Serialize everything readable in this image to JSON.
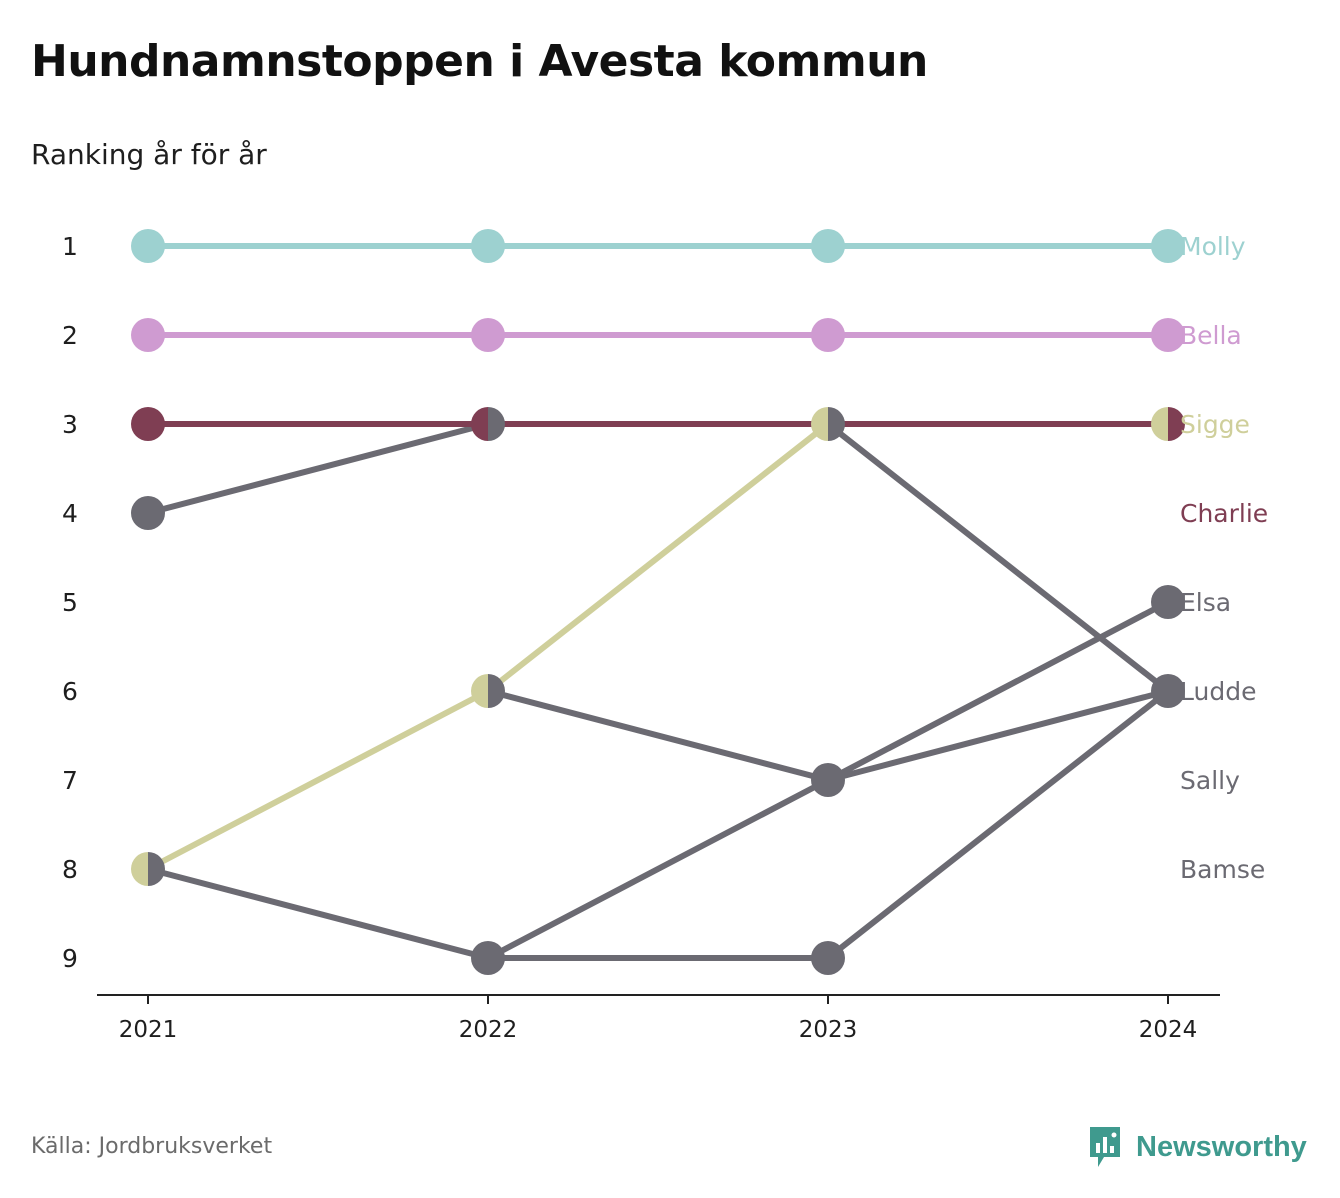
{
  "header": {
    "title": "Hundnamnstoppen i Avesta kommun",
    "subtitle": "Ranking år för år"
  },
  "footer": {
    "source": "Källa: Jordbruksverket",
    "brand": "Newsworthy",
    "brand_icon": "chart-bubble-icon",
    "brand_color": "#3f9a8e"
  },
  "chart_data": {
    "type": "line",
    "title": "Hundnamnstoppen i Avesta kommun",
    "subtitle": "Ranking år för år",
    "x": [
      "2021",
      "2022",
      "2023",
      "2024"
    ],
    "y_ticks": [
      1,
      2,
      3,
      4,
      5,
      6,
      7,
      8,
      9
    ],
    "ylim": [
      1,
      9
    ],
    "y_reversed": true,
    "grid": false,
    "legend": "direct-labels-right",
    "series": [
      {
        "name": "Molly",
        "color": "#9dd1d0",
        "values": [
          1,
          1,
          1,
          1
        ]
      },
      {
        "name": "Bella",
        "color": "#cf9bd1",
        "values": [
          2,
          2,
          2,
          2
        ]
      },
      {
        "name": "Sigge",
        "color": "#cfcf9b",
        "values": [
          8,
          6,
          3,
          3
        ]
      },
      {
        "name": "Charlie",
        "color": "#7f3e53",
        "values": [
          3,
          3,
          null,
          3
        ]
      },
      {
        "name": "Elsa",
        "color": "#6b6a72",
        "values": [
          null,
          9,
          7,
          5
        ]
      },
      {
        "name": "Ludde",
        "color": "#6b6a72",
        "values": [
          4,
          3,
          3,
          6
        ]
      },
      {
        "name": "Sally",
        "color": "#6b6a72",
        "values": [
          null,
          6,
          7,
          6
        ]
      },
      {
        "name": "Bamse",
        "color": "#6b6a72",
        "values": [
          8,
          9,
          9,
          6
        ]
      }
    ],
    "end_labels": [
      {
        "name": "Molly",
        "rank": 1,
        "color": "#9dd1d0"
      },
      {
        "name": "Bella",
        "rank": 2,
        "color": "#cf9bd1"
      },
      {
        "name": "Sigge",
        "rank": 3,
        "color": "#cfcf9b"
      },
      {
        "name": "Charlie",
        "rank": 4,
        "color": "#7f3e53"
      },
      {
        "name": "Elsa",
        "rank": 5,
        "color": "#6b6a72"
      },
      {
        "name": "Ludde",
        "rank": 6,
        "color": "#6b6a72"
      },
      {
        "name": "Sally",
        "rank": 7,
        "color": "#6b6a72"
      },
      {
        "name": "Bamse",
        "rank": 8,
        "color": "#6b6a72"
      }
    ]
  }
}
